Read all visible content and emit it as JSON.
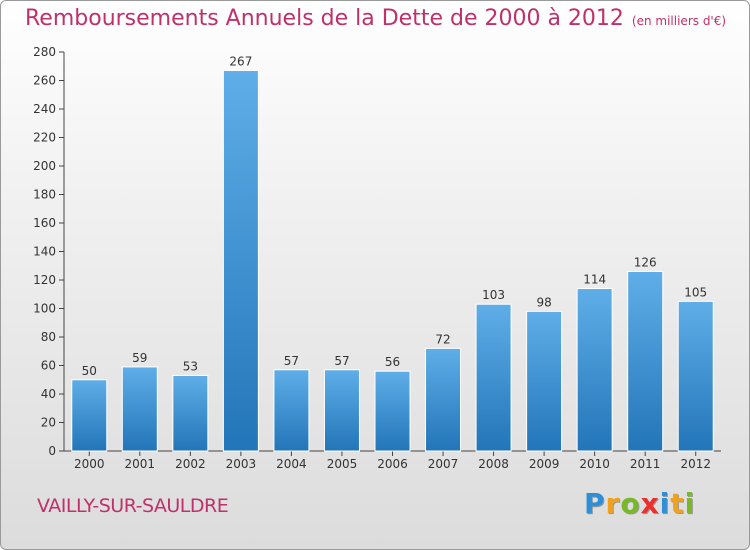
{
  "title": "Remboursements Annuels de la Dette de 2000 à 2012",
  "subtitle": "(en milliers d'€)",
  "commune": "VAILLY-SUR-SAULDRE",
  "logo": {
    "letters": [
      "P",
      "r",
      "o",
      "x",
      "i",
      "t",
      "i"
    ],
    "colors": [
      "#2e8fd6",
      "#f0a21f",
      "#79b928",
      "#e8312f",
      "#2e8fd6",
      "#f0a21f",
      "#79b928"
    ]
  },
  "colors": {
    "title": "#c0306a",
    "bar_top": "#5faee8",
    "bar_bottom": "#2275b8"
  },
  "chart_data": {
    "type": "bar",
    "categories": [
      "2000",
      "2001",
      "2002",
      "2003",
      "2004",
      "2005",
      "2006",
      "2007",
      "2008",
      "2009",
      "2010",
      "2011",
      "2012"
    ],
    "values": [
      50,
      59,
      53,
      267,
      57,
      57,
      56,
      72,
      103,
      98,
      114,
      126,
      105
    ],
    "ylim": [
      0,
      280
    ],
    "yticks": [
      0,
      20,
      40,
      60,
      80,
      100,
      120,
      140,
      160,
      180,
      200,
      220,
      240,
      260,
      280
    ],
    "grid": false
  }
}
